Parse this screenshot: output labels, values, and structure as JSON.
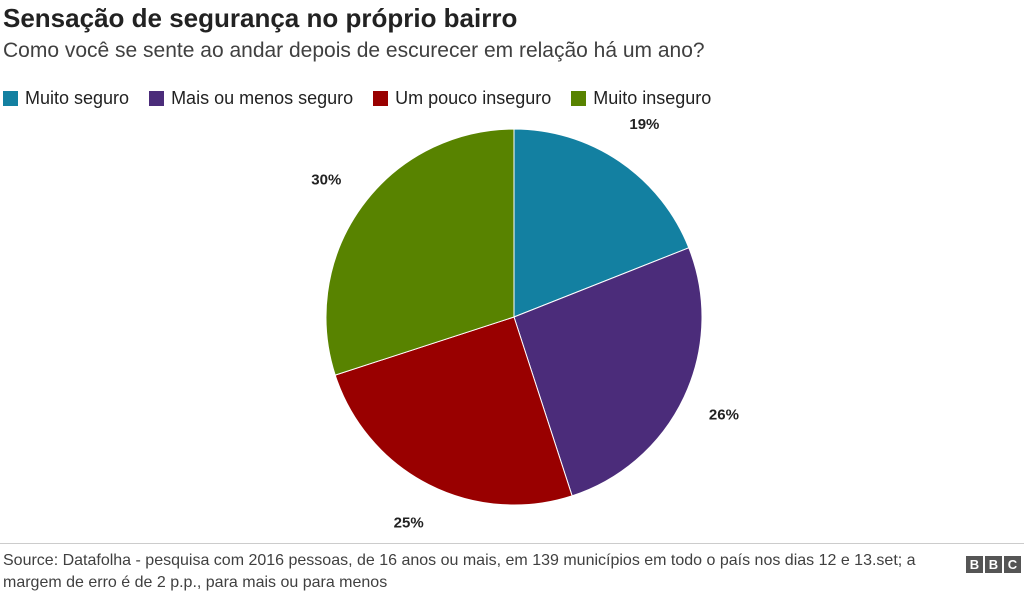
{
  "header": {
    "title": "Sensação de segurança no próprio bairro",
    "subtitle": "Como você se sente ao andar depois de escurecer em relação há um ano?"
  },
  "legend": {
    "items": [
      {
        "label": "Muito seguro",
        "color": "#1380A1"
      },
      {
        "label": "Mais ou menos seguro",
        "color": "#4B2C7A"
      },
      {
        "label": "Um pouco inseguro",
        "color": "#990000"
      },
      {
        "label": "Muito inseguro",
        "color": "#588300"
      }
    ]
  },
  "chart_data": {
    "type": "pie",
    "title": "Sensação de segurança no próprio bairro",
    "subtitle": "Como você se sente ao andar depois de escurecer em relação há um ano?",
    "legend_position": "top-left",
    "slices": [
      {
        "label": "Muito seguro",
        "value": 19,
        "display": "19%",
        "color": "#1380A1"
      },
      {
        "label": "Mais ou menos seguro",
        "value": 26,
        "display": "26%",
        "color": "#4B2C7A"
      },
      {
        "label": "Um pouco inseguro",
        "value": 25,
        "display": "25%",
        "color": "#990000"
      },
      {
        "label": "Muito inseguro",
        "value": 30,
        "display": "30%",
        "color": "#588300"
      }
    ]
  },
  "footer": {
    "source": "Source: Datafolha - pesquisa com 2016 pessoas, de 16 anos ou mais, em 139 municípios em todo o país nos dias 12 e 13.set; a margem de erro é de 2 p.p., para mais ou para menos",
    "logo_letters": [
      "B",
      "B",
      "C"
    ]
  }
}
